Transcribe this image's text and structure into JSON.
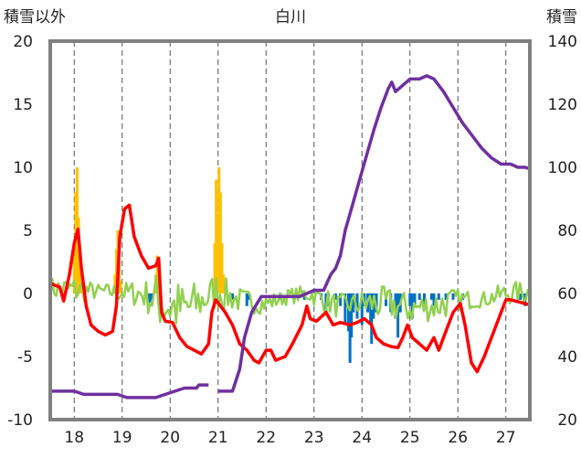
{
  "chart_data": {
    "type": "line",
    "title": "白川",
    "ylabel_left": "積雪以外",
    "ylabel_right": "積雪",
    "x_ticks": [
      "18",
      "19",
      "20",
      "21",
      "22",
      "23",
      "24",
      "25",
      "26",
      "27"
    ],
    "x_range": [
      17.5,
      27.5
    ],
    "ylim_left": [
      -10,
      20
    ],
    "left_ticks": [
      "-10",
      "-5",
      "0",
      "5",
      "10",
      "15",
      "20"
    ],
    "ylim_right": [
      20,
      140
    ],
    "right_ticks": [
      "20",
      "40",
      "60",
      "80",
      "100",
      "120",
      "140"
    ],
    "grid": "vertical dashed lines at each day",
    "colors": {
      "red": "#ff0000",
      "purple": "#7030a0",
      "green": "#92d050",
      "orange": "#ffc000",
      "blue": "#0070c0",
      "frame": "#808080"
    },
    "series": [
      {
        "color_key": "red",
        "axis": "left",
        "points": [
          [
            17.5,
            0.8
          ],
          [
            17.7,
            0.5
          ],
          [
            17.78,
            -0.6
          ],
          [
            17.9,
            1.5
          ],
          [
            18.0,
            4.0
          ],
          [
            18.08,
            5.1
          ],
          [
            18.15,
            2.0
          ],
          [
            18.25,
            -1.0
          ],
          [
            18.35,
            -2.5
          ],
          [
            18.5,
            -3.0
          ],
          [
            18.65,
            -3.3
          ],
          [
            18.8,
            -3.0
          ],
          [
            18.88,
            -1.0
          ],
          [
            18.95,
            4.5
          ],
          [
            19.05,
            6.7
          ],
          [
            19.15,
            7.0
          ],
          [
            19.25,
            4.5
          ],
          [
            19.4,
            3.0
          ],
          [
            19.55,
            2.0
          ],
          [
            19.7,
            2.2
          ],
          [
            19.76,
            2.8
          ],
          [
            19.82,
            -1.5
          ],
          [
            19.9,
            -2.2
          ],
          [
            20.05,
            -2.3
          ],
          [
            20.2,
            -3.5
          ],
          [
            20.35,
            -4.2
          ],
          [
            20.5,
            -4.5
          ],
          [
            20.65,
            -4.8
          ],
          [
            20.8,
            -4.0
          ],
          [
            20.87,
            -1.5
          ],
          [
            20.95,
            -0.5
          ],
          [
            21.05,
            -1.0
          ],
          [
            21.15,
            -1.5
          ],
          [
            21.3,
            -2.5
          ],
          [
            21.45,
            -4.0
          ],
          [
            21.6,
            -4.5
          ],
          [
            21.75,
            -5.3
          ],
          [
            21.85,
            -5.5
          ],
          [
            22.0,
            -4.5
          ],
          [
            22.1,
            -4.5
          ],
          [
            22.2,
            -5.3
          ],
          [
            22.4,
            -5.0
          ],
          [
            22.55,
            -4.0
          ],
          [
            22.75,
            -2.5
          ],
          [
            22.85,
            -1.0
          ],
          [
            22.92,
            -2.0
          ],
          [
            23.05,
            -2.2
          ],
          [
            23.25,
            -1.5
          ],
          [
            23.4,
            -2.5
          ],
          [
            23.55,
            -2.3
          ],
          [
            23.75,
            -2.5
          ],
          [
            23.9,
            -2.3
          ],
          [
            24.05,
            -2.0
          ],
          [
            24.2,
            -2.5
          ],
          [
            24.3,
            -3.5
          ],
          [
            24.45,
            -4.0
          ],
          [
            24.6,
            -4.2
          ],
          [
            24.75,
            -4.3
          ],
          [
            24.85,
            -3.5
          ],
          [
            24.95,
            -2.5
          ],
          [
            25.05,
            -3.5
          ],
          [
            25.2,
            -4.0
          ],
          [
            25.35,
            -4.5
          ],
          [
            25.5,
            -3.5
          ],
          [
            25.6,
            -4.5
          ],
          [
            25.75,
            -3.0
          ],
          [
            25.9,
            -1.5
          ],
          [
            26.05,
            -0.8
          ],
          [
            26.15,
            -2.5
          ],
          [
            26.28,
            -5.5
          ],
          [
            26.4,
            -6.2
          ],
          [
            26.55,
            -5.0
          ],
          [
            26.7,
            -3.5
          ],
          [
            26.85,
            -2.0
          ],
          [
            27.0,
            -0.5
          ],
          [
            27.1,
            -0.5
          ],
          [
            27.5,
            -0.9
          ]
        ]
      },
      {
        "color_key": "purple",
        "axis": "right",
        "points": [
          [
            17.5,
            29
          ],
          [
            18.0,
            29
          ],
          [
            18.2,
            28
          ],
          [
            18.9,
            28
          ],
          [
            19.1,
            27
          ],
          [
            19.7,
            27
          ],
          [
            19.9,
            28
          ],
          [
            20.1,
            29
          ],
          [
            20.3,
            30
          ],
          [
            20.55,
            30
          ],
          [
            20.6,
            31
          ],
          [
            20.8,
            31
          ],
          [
            21.0,
            29
          ],
          [
            21.3,
            29
          ],
          [
            21.45,
            36
          ],
          [
            21.55,
            46
          ],
          [
            21.7,
            54
          ],
          [
            21.9,
            59
          ],
          [
            22.2,
            59
          ],
          [
            22.5,
            59
          ],
          [
            22.7,
            59
          ],
          [
            22.85,
            60
          ],
          [
            23.0,
            61
          ],
          [
            23.2,
            61
          ],
          [
            23.35,
            66
          ],
          [
            23.45,
            68
          ],
          [
            23.55,
            72
          ],
          [
            23.65,
            80
          ],
          [
            23.8,
            88
          ],
          [
            23.95,
            96
          ],
          [
            24.1,
            104
          ],
          [
            24.25,
            112
          ],
          [
            24.4,
            119
          ],
          [
            24.55,
            125
          ],
          [
            24.62,
            127
          ],
          [
            24.7,
            124
          ],
          [
            24.85,
            126
          ],
          [
            25.0,
            128
          ],
          [
            25.2,
            128
          ],
          [
            25.35,
            129
          ],
          [
            25.5,
            128
          ],
          [
            25.7,
            124
          ],
          [
            25.9,
            119
          ],
          [
            26.1,
            114
          ],
          [
            26.3,
            110
          ],
          [
            26.5,
            106
          ],
          [
            26.7,
            103
          ],
          [
            26.9,
            101
          ],
          [
            27.1,
            101
          ],
          [
            27.25,
            100
          ],
          [
            27.4,
            100
          ],
          [
            27.5,
            99.5
          ]
        ],
        "gap": [
          20.8,
          21.0
        ]
      }
    ],
    "green_line": {
      "color_key": "green",
      "axis": "left",
      "note": "hourly fluctuating series around 0",
      "anchors": [
        [
          17.5,
          0.4
        ],
        [
          18.3,
          0.2
        ],
        [
          19.4,
          0.0
        ],
        [
          19.7,
          -0.5
        ],
        [
          20.0,
          -1.0
        ],
        [
          20.3,
          -1.3
        ],
        [
          20.7,
          -0.5
        ],
        [
          21.0,
          0.3
        ],
        [
          21.2,
          -0.2
        ],
        [
          21.5,
          -0.6
        ],
        [
          22.0,
          -0.8
        ],
        [
          22.5,
          -0.2
        ],
        [
          22.9,
          0.0
        ],
        [
          23.2,
          -0.5
        ],
        [
          23.5,
          -1.0
        ],
        [
          24.0,
          -0.8
        ],
        [
          24.5,
          -0.8
        ],
        [
          25.0,
          -1.2
        ],
        [
          25.5,
          -1.0
        ],
        [
          26.0,
          -0.5
        ],
        [
          26.5,
          -0.5
        ],
        [
          27.0,
          0.0
        ],
        [
          27.5,
          0.1
        ]
      ],
      "amplitude": [
        [
          17.5,
          0.9
        ],
        [
          18.0,
          1.2
        ],
        [
          18.5,
          0.6
        ],
        [
          19.0,
          0.8
        ],
        [
          19.5,
          1.3
        ],
        [
          19.75,
          2.4
        ],
        [
          20.0,
          2.4
        ],
        [
          20.4,
          2.1
        ],
        [
          20.7,
          1.5
        ],
        [
          21.0,
          1.6
        ],
        [
          21.3,
          1.1
        ],
        [
          21.8,
          0.9
        ],
        [
          22.3,
          0.6
        ],
        [
          22.8,
          0.7
        ],
        [
          23.3,
          1.0
        ],
        [
          23.8,
          0.9
        ],
        [
          24.3,
          1.4
        ],
        [
          24.8,
          1.3
        ],
        [
          25.3,
          1.2
        ],
        [
          25.7,
          1.3
        ],
        [
          26.0,
          0.9
        ],
        [
          26.5,
          0.6
        ],
        [
          27.0,
          0.9
        ],
        [
          27.5,
          0.9
        ]
      ]
    },
    "bars": [
      {
        "color_key": "orange",
        "axis": "left",
        "values": [
          [
            18.0,
            3.0
          ],
          [
            18.03,
            8.0
          ],
          [
            18.06,
            10.0
          ],
          [
            18.09,
            6.0
          ],
          [
            18.12,
            2.5
          ],
          [
            18.15,
            1.0
          ],
          [
            18.85,
            1.5
          ],
          [
            18.88,
            3.5
          ],
          [
            18.91,
            5.0
          ],
          [
            18.94,
            2.5
          ],
          [
            18.97,
            1.0
          ],
          [
            19.7,
            1.5
          ],
          [
            19.73,
            3.0
          ],
          [
            19.76,
            1.5
          ],
          [
            20.93,
            4.0
          ],
          [
            20.96,
            9.0
          ],
          [
            20.99,
            6.0
          ],
          [
            21.02,
            10.0
          ],
          [
            21.05,
            8.0
          ],
          [
            21.08,
            4.0
          ],
          [
            21.11,
            1.5
          ]
        ]
      },
      {
        "color_key": "blue",
        "axis": "left",
        "values": [
          [
            19.55,
            -0.5
          ],
          [
            19.58,
            -1.0
          ],
          [
            19.62,
            -0.5
          ],
          [
            21.3,
            -0.5
          ],
          [
            21.6,
            -1.0
          ],
          [
            21.65,
            -0.5
          ],
          [
            22.3,
            -0.5
          ],
          [
            22.8,
            -0.5
          ],
          [
            23.15,
            -0.5
          ],
          [
            23.25,
            -1.5
          ],
          [
            23.3,
            -1.0
          ],
          [
            23.45,
            -0.5
          ],
          [
            23.55,
            -1.0
          ],
          [
            23.65,
            -2.5
          ],
          [
            23.72,
            -3.0
          ],
          [
            23.75,
            -5.5
          ],
          [
            23.78,
            -3.5
          ],
          [
            23.82,
            -1.5
          ],
          [
            23.9,
            -2.0
          ],
          [
            24.0,
            -2.5
          ],
          [
            24.05,
            -1.0
          ],
          [
            24.12,
            -1.5
          ],
          [
            24.18,
            -2.5
          ],
          [
            24.2,
            -4.0
          ],
          [
            24.24,
            -2.0
          ],
          [
            24.3,
            -1.5
          ],
          [
            24.5,
            -1.0
          ],
          [
            24.6,
            -1.5
          ],
          [
            24.7,
            -2.0
          ],
          [
            24.75,
            -3.5
          ],
          [
            24.8,
            -1.5
          ],
          [
            25.0,
            -1.0
          ],
          [
            25.05,
            -2.0
          ],
          [
            25.1,
            -1.0
          ],
          [
            25.2,
            -0.5
          ],
          [
            25.3,
            -1.0
          ],
          [
            25.45,
            -0.5
          ],
          [
            25.5,
            -1.0
          ],
          [
            25.6,
            -0.5
          ],
          [
            25.75,
            -0.5
          ],
          [
            25.9,
            -0.5
          ],
          [
            26.1,
            -0.5
          ],
          [
            27.3,
            -0.5
          ],
          [
            27.4,
            -1.0
          ]
        ]
      }
    ]
  }
}
